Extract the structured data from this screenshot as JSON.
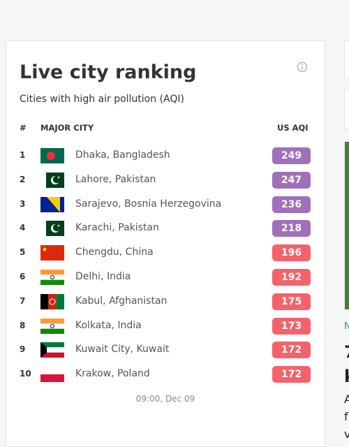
{
  "card": {
    "title": "Live city ranking",
    "subtitle": "Cities with high air pollution (AQI)",
    "columns": {
      "rank": "#",
      "city": "MAJOR CITY",
      "aqi": "US AQI"
    },
    "rows": [
      {
        "rank": "1",
        "city": "Dhaka, Bangladesh",
        "aqi": "249",
        "color": "#a070ba"
      },
      {
        "rank": "2",
        "city": "Lahore, Pakistan",
        "aqi": "247",
        "color": "#a070ba"
      },
      {
        "rank": "3",
        "city": "Sarajevo, Bosnia Herzegovina",
        "aqi": "236",
        "color": "#a070ba"
      },
      {
        "rank": "4",
        "city": "Karachi, Pakistan",
        "aqi": "218",
        "color": "#a070ba"
      },
      {
        "rank": "5",
        "city": "Chengdu, China",
        "aqi": "196",
        "color": "#f4626a"
      },
      {
        "rank": "6",
        "city": "Delhi, India",
        "aqi": "192",
        "color": "#f4626a"
      },
      {
        "rank": "7",
        "city": "Kabul, Afghanistan",
        "aqi": "175",
        "color": "#f4626a"
      },
      {
        "rank": "8",
        "city": "Kolkata, India",
        "aqi": "173",
        "color": "#f4626a"
      },
      {
        "rank": "9",
        "city": "Kuwait City, Kuwait",
        "aqi": "172",
        "color": "#f4626a"
      },
      {
        "rank": "10",
        "city": "Krakow, Poland",
        "aqi": "172",
        "color": "#f4626a"
      }
    ],
    "timestamp": "09:00, Dec 09"
  },
  "side": {
    "tag": "N",
    "heading": [
      "7",
      "k"
    ],
    "body": [
      "A",
      "f",
      "v"
    ]
  }
}
